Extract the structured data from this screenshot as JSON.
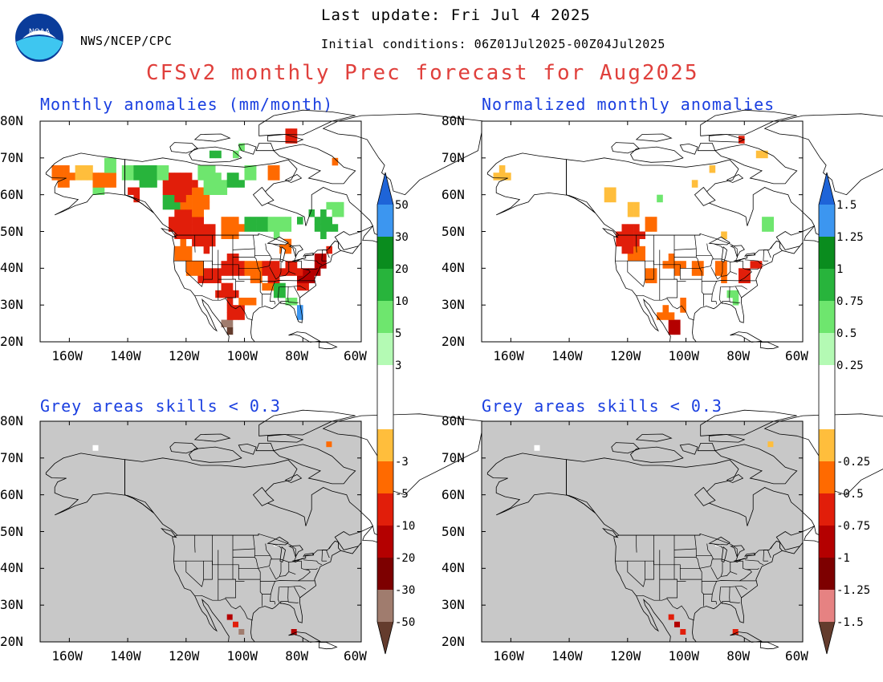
{
  "header": {
    "last_update": "Last update: Fri Jul 4 2025",
    "agency": "NWS/NCEP/CPC",
    "initial_conditions": "Initial conditions: 06Z01Jul2025-00Z04Jul2025",
    "title": "CFSv2 monthly Prec forecast for Aug2025",
    "logo_text": "NOAA"
  },
  "panels": [
    {
      "id": "anom",
      "title": "Monthly anomalies (mm/month)",
      "skill_masked": false
    },
    {
      "id": "norm",
      "title": "Normalized monthly anomalies",
      "skill_masked": false
    },
    {
      "id": "anom_skill",
      "title": "Grey areas skills < 0.3",
      "skill_masked": true
    },
    {
      "id": "norm_skill",
      "title": "Grey areas skills < 0.3",
      "skill_masked": true
    }
  ],
  "axes": {
    "lat_labels": [
      "80N",
      "70N",
      "60N",
      "50N",
      "40N",
      "30N",
      "20N"
    ],
    "lon_labels": [
      "160W",
      "140W",
      "120W",
      "100W",
      "80W",
      "60W"
    ]
  },
  "colorbars": [
    {
      "id": "mm",
      "labels": [
        "50",
        "30",
        "20",
        "10",
        "5",
        "3",
        "-3",
        "-5",
        "-10",
        "-20",
        "-30",
        "-50"
      ]
    },
    {
      "id": "norm",
      "labels": [
        "1.5",
        "1.25",
        "1",
        "0.75",
        "0.5",
        "0.25",
        "-0.25",
        "-0.5",
        "-0.75",
        "-1",
        "-1.25",
        "-1.5"
      ]
    }
  ],
  "colors": {
    "wet": [
      "#1e64d8",
      "#3c96f0",
      "#0a8c1e",
      "#28b43c",
      "#6ee66e",
      "#b4fab4"
    ],
    "dry": [
      "#ffbe3c",
      "#ff6a00",
      "#e11e0a",
      "#b40000",
      "#7d0000",
      "#a07c6e",
      "#643c2d"
    ],
    "dry_norm": [
      "#ffbe3c",
      "#ff6a00",
      "#e11e0a",
      "#b40000",
      "#7d0000",
      "#e68282",
      "#643c2d"
    ],
    "mask_grey": "#c8c8c8"
  }
}
